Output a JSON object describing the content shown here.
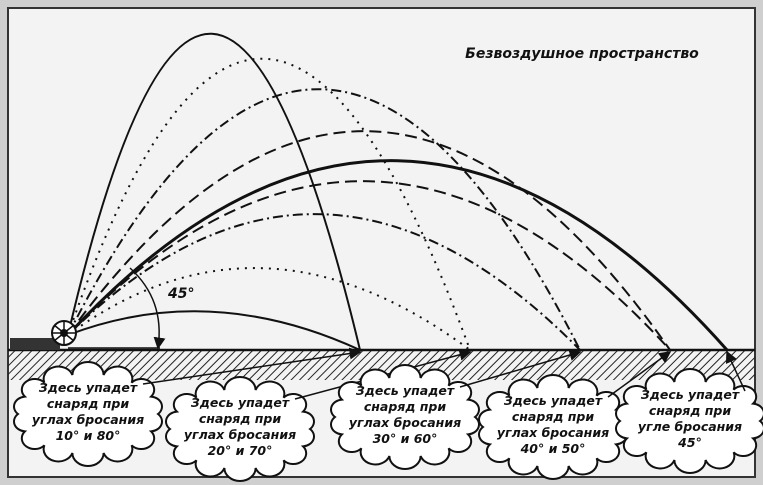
{
  "title": "Безвоздушное пространство",
  "angle_label": "45°",
  "callouts": [
    {
      "lines": [
        "Здесь упадет",
        "снаряд при",
        "углах бросания",
        "10° и 80°"
      ]
    },
    {
      "lines": [
        "Здесь упадет",
        "снаряд при",
        "углах бросания",
        "20° и 70°"
      ]
    },
    {
      "lines": [
        "Здесь упадет",
        "снаряд при",
        "углах бросания",
        "30° и 60°"
      ]
    },
    {
      "lines": [
        "Здесь упадет",
        "снаряд при",
        "углах бросания",
        "40° и 50°"
      ]
    },
    {
      "lines": [
        "Здесь упадет",
        "снаряд при",
        "угле бросания",
        "45°"
      ]
    }
  ]
}
